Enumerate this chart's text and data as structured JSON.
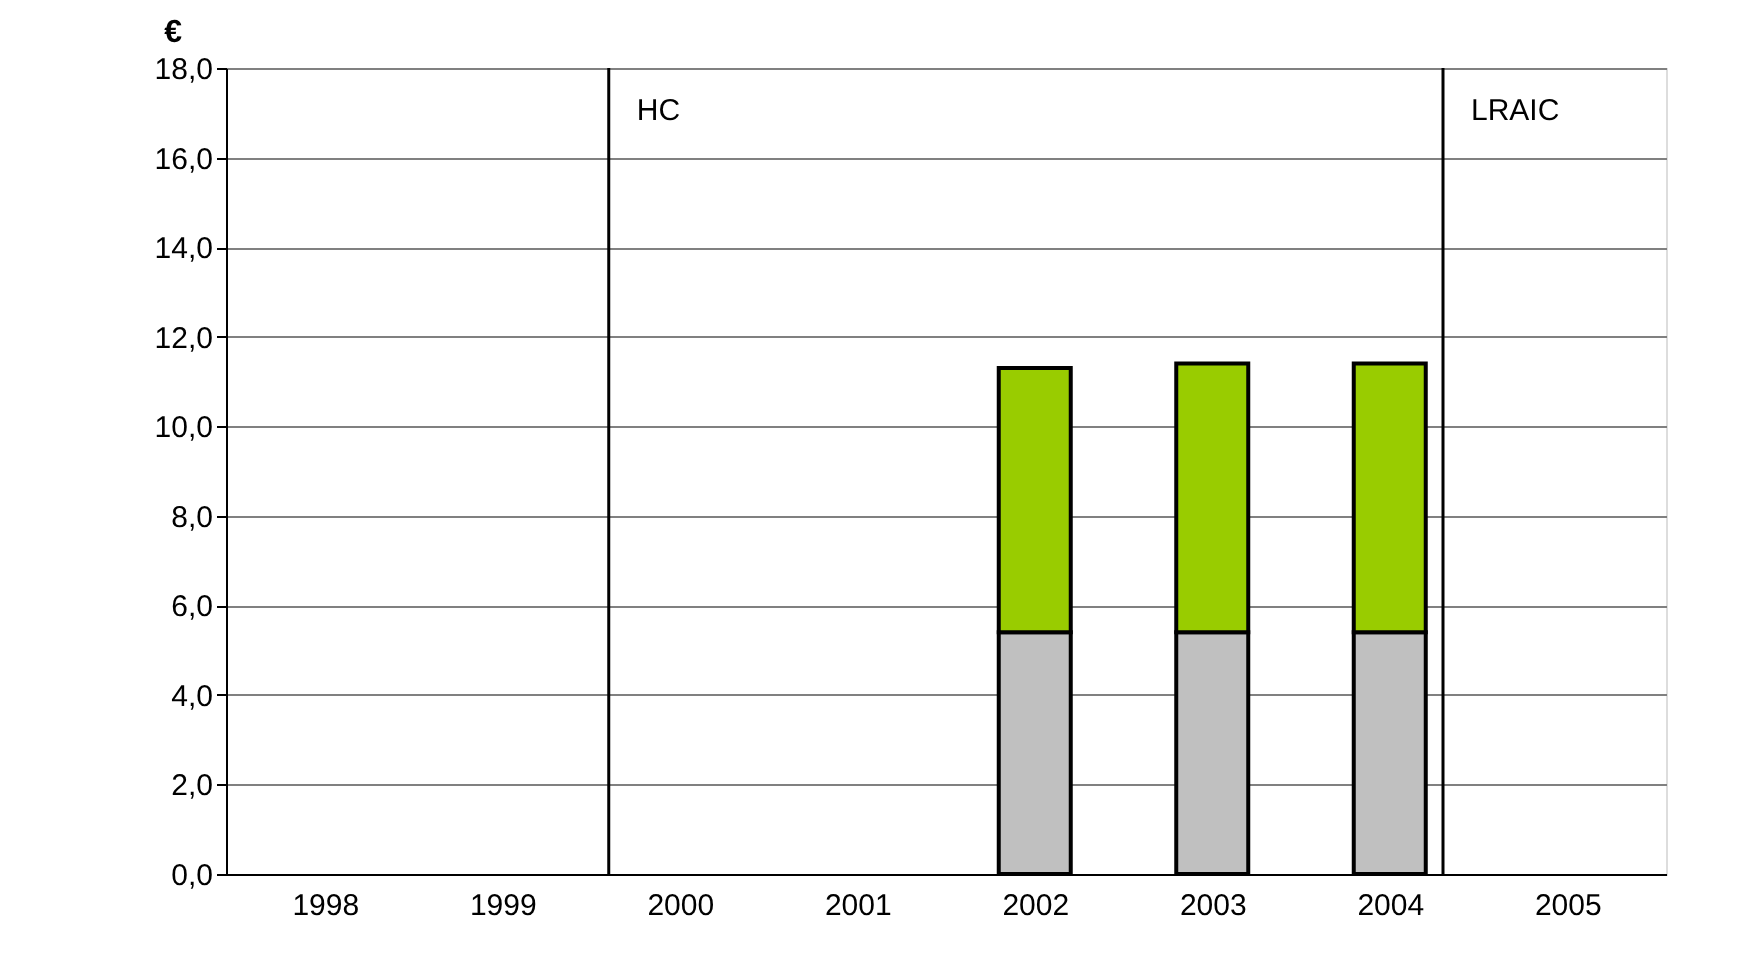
{
  "chart_data": {
    "type": "bar",
    "stacked": true,
    "ylabel": "€",
    "xlim": [
      1997.5,
      2005.5
    ],
    "xticks": [
      1998,
      1999,
      2000,
      2001,
      2002,
      2003,
      2004,
      2005
    ],
    "series": [
      {
        "color": "#c0c0c0",
        "x": [
          2002,
          2003,
          2004
        ],
        "values": [
          5.4,
          5.4,
          5.4
        ]
      },
      {
        "color": "#99cc00",
        "x": [
          2002,
          2003,
          2004
        ],
        "values": [
          5.9,
          6.0,
          6.0
        ]
      }
    ],
    "ylim": [
      0,
      18
    ],
    "yticks": [
      {
        "value": 0,
        "label": "0,0"
      },
      {
        "value": 2,
        "label": "2,0"
      },
      {
        "value": 4,
        "label": "4,0"
      },
      {
        "value": 6,
        "label": "6,0"
      },
      {
        "value": 8,
        "label": "8,0"
      },
      {
        "value": 10,
        "label": "10,0"
      },
      {
        "value": 12,
        "label": "12,0"
      },
      {
        "value": 14,
        "label": "14,0"
      },
      {
        "value": 16,
        "label": "16,0"
      },
      {
        "value": 18,
        "label": "18,0"
      }
    ],
    "grid": "y",
    "legend": false,
    "ref_lines": [
      {
        "axis": "x",
        "value": 1999.6,
        "label": "HC",
        "color": "#000000"
      },
      {
        "axis": "x",
        "value": 2004.3,
        "label": "LRAIC",
        "color": "#000000"
      }
    ]
  }
}
